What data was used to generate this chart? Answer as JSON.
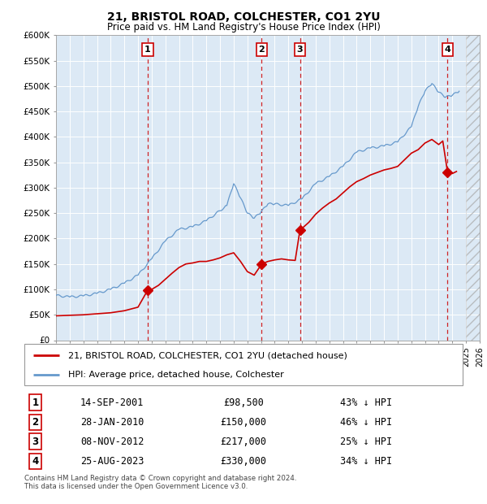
{
  "title": "21, BRISTOL ROAD, COLCHESTER, CO1 2YU",
  "subtitle": "Price paid vs. HM Land Registry's House Price Index (HPI)",
  "footer": "Contains HM Land Registry data © Crown copyright and database right 2024.\nThis data is licensed under the Open Government Licence v3.0.",
  "legend_line1": "21, BRISTOL ROAD, COLCHESTER, CO1 2YU (detached house)",
  "legend_line2": "HPI: Average price, detached house, Colchester",
  "transactions": [
    {
      "num": 1,
      "date": "14-SEP-2001",
      "price": 98500,
      "pct": "43% ↓ HPI",
      "year": 2001.71,
      "value": 98500
    },
    {
      "num": 2,
      "date": "28-JAN-2010",
      "price": 150000,
      "pct": "46% ↓ HPI",
      "year": 2010.05,
      "value": 150000
    },
    {
      "num": 3,
      "date": "08-NOV-2012",
      "price": 217000,
      "pct": "25% ↓ HPI",
      "year": 2012.85,
      "value": 217000
    },
    {
      "num": 4,
      "date": "25-AUG-2023",
      "price": 330000,
      "pct": "34% ↓ HPI",
      "year": 2023.65,
      "value": 330000
    }
  ],
  "hpi_color": "#6699cc",
  "price_color": "#cc0000",
  "bg_color": "#dce9f5",
  "grid_color": "#ffffff",
  "annotation_box_color": "#cc0000",
  "dashed_line_color": "#cc0000",
  "ylim": [
    0,
    600000
  ],
  "xlim_start": 1995,
  "xlim_end": 2026
}
